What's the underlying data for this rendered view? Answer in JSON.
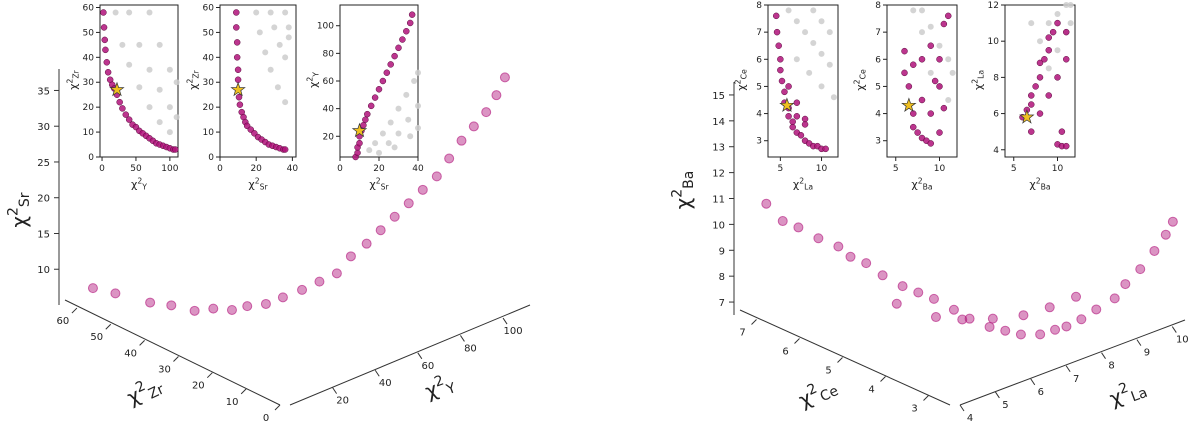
{
  "chart_data": [
    {
      "type": "scatter3d",
      "xlabel": {
        "symbol": "χ",
        "power": "2",
        "element": "Y"
      },
      "ylabel": {
        "symbol": "χ",
        "power": "2",
        "element": "Zr"
      },
      "zlabel": {
        "symbol": "χ",
        "power": "2",
        "element": "Sr"
      },
      "xlim": [
        0,
        115
      ],
      "ylim": [
        0,
        65
      ],
      "zlim": [
        5,
        38
      ],
      "xticks": [
        20,
        40,
        60,
        80,
        100
      ],
      "yticks": [
        0,
        10,
        20,
        30,
        40,
        50,
        60
      ],
      "zticks": [
        10,
        15,
        20,
        25,
        30,
        35
      ],
      "series": [
        {
          "color": "#b0127a",
          "x": [
            2,
            3,
            5,
            7,
            10,
            14,
            18,
            22,
            26,
            30,
            35,
            40,
            45,
            50,
            55,
            60,
            65,
            70,
            75,
            80,
            85,
            90,
            95,
            100,
            104,
            108
          ],
          "y": [
            58,
            52,
            43,
            38,
            33,
            30,
            27,
            25,
            22,
            19.5,
            17,
            15,
            13,
            12,
            10.5,
            9.5,
            8.5,
            7.5,
            6.5,
            5.5,
            5,
            4.5,
            4,
            3.5,
            3,
            3
          ],
          "z": [
            8,
            8.5,
            9,
            9.5,
            9.5,
            10,
            10,
            10.5,
            11,
            12,
            13,
            14,
            15,
            17,
            18.5,
            20,
            21.5,
            23,
            24.5,
            26,
            28,
            30,
            31.5,
            33,
            35,
            37
          ]
        }
      ]
    },
    {
      "type": "scatter3d",
      "xlabel": {
        "symbol": "χ",
        "power": "2",
        "element": "La"
      },
      "ylabel": {
        "symbol": "χ",
        "power": "2",
        "element": "Ce"
      },
      "zlabel": {
        "symbol": "χ",
        "power": "2",
        "element": "Ba"
      },
      "xlim": [
        4,
        10.5
      ],
      "ylim": [
        2.5,
        7.5
      ],
      "zlim": [
        6.5,
        15.5
      ],
      "xticks": [
        4,
        5,
        6,
        7,
        8,
        9,
        10
      ],
      "yticks": [
        3,
        4,
        5,
        6,
        7
      ],
      "zticks": [
        7,
        8,
        9,
        10,
        11,
        12,
        13,
        14,
        15
      ],
      "series": [
        {
          "color": "#b0127a",
          "x": [
            4.5,
            4.6,
            4.8,
            5,
            5.2,
            5.3,
            5.5,
            5.6,
            5.8,
            6,
            6.2,
            6.4,
            6.6,
            6.8,
            7,
            7.2,
            7.5,
            7.8,
            8,
            8.3,
            8.6,
            9,
            9.3,
            9.6,
            10,
            10.2,
            10.4,
            6,
            6.5,
            7,
            7.5,
            8,
            8.5,
            9
          ],
          "y": [
            7.3,
            7,
            6.8,
            6.5,
            6.2,
            6,
            5.8,
            5.5,
            5.2,
            5,
            4.8,
            4.5,
            4.3,
            4,
            3.8,
            3.6,
            3.4,
            3.3,
            3.2,
            3.1,
            3,
            2.9,
            2.9,
            2.8,
            2.8,
            2.7,
            2.7,
            5.5,
            5,
            4.8,
            4.5,
            4.2,
            4,
            3.8
          ],
          "z": [
            10.5,
            10,
            9.8,
            9.5,
            9.3,
            9,
            8.8,
            8.5,
            8.2,
            8,
            7.8,
            7.5,
            7.2,
            7,
            6.9,
            6.8,
            6.8,
            6.9,
            7,
            7.2,
            7.5,
            7.8,
            8.2,
            8.7,
            9.2,
            9.8,
            10.2,
            7.2,
            6.8,
            6.6,
            6.6,
            6.7,
            6.9,
            7.2
          ]
        }
      ]
    },
    {
      "type": "scatter",
      "xlabel": {
        "symbol": "χ",
        "power": "2",
        "element": "Y"
      },
      "ylabel": {
        "symbol": "χ",
        "power": "2",
        "element": "Zr"
      },
      "xlim": [
        -3,
        112
      ],
      "ylim": [
        0,
        61
      ],
      "xticks": [
        0,
        50,
        100
      ],
      "yticks": [
        0,
        10,
        20,
        30,
        40,
        50,
        60
      ],
      "series": [
        {
          "color": "#cccccc",
          "x": [
            20,
            30,
            40,
            55,
            70,
            85,
            100,
            40,
            55,
            70,
            85,
            100,
            110,
            70,
            85,
            100,
            110
          ],
          "values": [
            58,
            45,
            37,
            28,
            20,
            14,
            10,
            58,
            45,
            35,
            27,
            20,
            16,
            58,
            45,
            35,
            30
          ]
        },
        {
          "color": "#b0127a",
          "x": [
            2,
            3,
            4,
            5,
            7,
            9,
            12,
            15,
            18,
            22,
            26,
            30,
            35,
            40,
            45,
            50,
            55,
            60,
            65,
            70,
            75,
            80,
            85,
            90,
            95,
            100,
            105,
            108
          ],
          "values": [
            58,
            52,
            47,
            43,
            38,
            34,
            31,
            29,
            27.5,
            25,
            22,
            19.5,
            17,
            15,
            13,
            12,
            10.5,
            9.5,
            8.5,
            7.5,
            6.5,
            5.5,
            5,
            4.5,
            4,
            3.5,
            3,
            3
          ]
        }
      ],
      "highlight": {
        "color": "#f0c020",
        "x": 22,
        "y": 27
      }
    },
    {
      "type": "scatter",
      "xlabel": {
        "symbol": "χ",
        "power": "2",
        "element": "Sr"
      },
      "ylabel": {
        "symbol": "χ",
        "power": "2",
        "element": "Zr"
      },
      "xlim": [
        0,
        42
      ],
      "ylim": [
        0,
        61
      ],
      "xticks": [
        0,
        20,
        40
      ],
      "yticks": [
        0,
        10,
        20,
        30,
        40,
        50,
        60
      ],
      "series": [
        {
          "color": "#cccccc",
          "x": [
            20,
            22,
            25,
            28,
            32,
            36,
            28,
            30,
            33,
            36,
            36,
            38,
            38
          ],
          "values": [
            58,
            50,
            42,
            35,
            28,
            22,
            58,
            52,
            45,
            40,
            58,
            52,
            48
          ]
        },
        {
          "color": "#b0127a",
          "x": [
            9,
            9,
            9.5,
            9.5,
            10,
            10,
            10,
            10.5,
            11,
            12,
            13,
            14,
            15,
            17,
            19,
            21,
            23,
            25,
            27,
            29,
            31,
            33,
            35,
            36
          ],
          "values": [
            58,
            52,
            46,
            40,
            35,
            31,
            27,
            24,
            21,
            18,
            16,
            14,
            12.5,
            11,
            9.5,
            8,
            7,
            6,
            5,
            4.5,
            4,
            3.5,
            3,
            3
          ]
        }
      ],
      "highlight": {
        "color": "#f0c020",
        "x": 10,
        "y": 27
      }
    },
    {
      "type": "scatter",
      "xlabel": {
        "symbol": "χ",
        "power": "2",
        "element": "Sr"
      },
      "ylabel": {
        "symbol": "χ",
        "power": "2",
        "element": "Y"
      },
      "xlim": [
        0,
        40
      ],
      "ylim": [
        5,
        115
      ],
      "xticks": [
        0,
        20,
        40
      ],
      "yticks": [
        20,
        40,
        60,
        80,
        100
      ],
      "series": [
        {
          "color": "#cccccc",
          "x": [
            15,
            18,
            22,
            26,
            30,
            34,
            38,
            40,
            25,
            30,
            35,
            40,
            20,
            28,
            36,
            40
          ],
          "values": [
            10,
            15,
            22,
            30,
            40,
            50,
            60,
            66,
            15,
            22,
            32,
            42,
            8,
            12,
            20,
            26
          ]
        },
        {
          "color": "#b0127a",
          "x": [
            8,
            9,
            9,
            10,
            10,
            11,
            12,
            13,
            14,
            16,
            18,
            20,
            22,
            24,
            26,
            28,
            30,
            32,
            34,
            36,
            37
          ],
          "values": [
            5,
            8,
            12,
            15,
            20,
            24,
            28,
            32,
            36,
            42,
            48,
            54,
            60,
            66,
            72,
            78,
            84,
            90,
            96,
            102,
            108
          ]
        }
      ],
      "highlight": {
        "color": "#f0c020",
        "x": 10,
        "y": 24
      }
    },
    {
      "type": "scatter",
      "xlabel": {
        "symbol": "χ",
        "power": "2",
        "element": "La"
      },
      "ylabel": {
        "symbol": "χ",
        "power": "2",
        "element": "Ce"
      },
      "xlim": [
        3.5,
        12
      ],
      "ylim": [
        2.4,
        8
      ],
      "xticks": [
        5,
        10
      ],
      "yticks": [
        3,
        4,
        5,
        6,
        7,
        8
      ],
      "series": [
        {
          "color": "#cccccc",
          "x": [
            6,
            7,
            8,
            9,
            10,
            11,
            7,
            8.5,
            10,
            11.5,
            9,
            10,
            11
          ],
          "values": [
            7.8,
            7.4,
            7,
            6.6,
            6.2,
            5.8,
            6,
            5.5,
            5,
            4.6,
            7.8,
            7.4,
            7
          ]
        },
        {
          "color": "#b0127a",
          "x": [
            4.5,
            4.6,
            4.8,
            5,
            5,
            5.2,
            5.5,
            5.5,
            6,
            6,
            6.5,
            6.5,
            7,
            7,
            7.5,
            8,
            8,
            8.5,
            9,
            9.5,
            10,
            10.5,
            6,
            7,
            8
          ],
          "values": [
            7.6,
            7,
            6.5,
            6,
            5.6,
            5.2,
            4.8,
            4.4,
            4.2,
            3.9,
            3.7,
            3.5,
            3.3,
            3.9,
            3.2,
            3,
            3.6,
            2.9,
            2.8,
            2.8,
            2.7,
            2.7,
            5,
            4.4,
            3.8
          ]
        }
      ],
      "highlight": {
        "color": "#f0c020",
        "x": 5.8,
        "y": 4.3
      }
    },
    {
      "type": "scatter",
      "xlabel": {
        "symbol": "χ",
        "power": "2",
        "element": "Ba"
      },
      "ylabel": {
        "symbol": "χ",
        "power": "2",
        "element": "Ce"
      },
      "xlim": [
        4,
        12
      ],
      "ylim": [
        2.4,
        8
      ],
      "xticks": [
        5,
        10
      ],
      "yticks": [
        3,
        4,
        5,
        6,
        7,
        8
      ],
      "series": [
        {
          "color": "#cccccc",
          "x": [
            8,
            9,
            10,
            11,
            11.5,
            9,
            10,
            11,
            7,
            8
          ],
          "values": [
            7.8,
            7.2,
            6.5,
            6,
            5.5,
            5.5,
            5,
            4.5,
            7.8,
            7
          ]
        },
        {
          "color": "#b0127a",
          "x": [
            6,
            6,
            6.5,
            6.5,
            7,
            7,
            7.5,
            8,
            8,
            8.5,
            9,
            9,
            9.5,
            10,
            10,
            10.5,
            10.5,
            11,
            7,
            8,
            9,
            10
          ],
          "values": [
            6.3,
            5.5,
            5,
            4.3,
            4,
            3.5,
            3.3,
            3.1,
            4.5,
            3,
            2.9,
            4,
            5.2,
            3.3,
            6,
            4.2,
            7.3,
            7.6,
            5.8,
            6,
            6.5,
            5
          ]
        }
      ],
      "highlight": {
        "color": "#f0c020",
        "x": 6.5,
        "y": 4.3
      }
    },
    {
      "type": "scatter",
      "xlabel": {
        "symbol": "χ",
        "power": "2",
        "element": "Ba"
      },
      "ylabel": {
        "symbol": "χ",
        "power": "2",
        "element": "La"
      },
      "xlim": [
        4,
        12
      ],
      "ylim": [
        3.6,
        12
      ],
      "xticks": [
        5,
        10
      ],
      "yticks": [
        4,
        6,
        8,
        10,
        12
      ],
      "series": [
        {
          "color": "#cccccc",
          "x": [
            8,
            9,
            10,
            11,
            11.5,
            9,
            10,
            11,
            11.5,
            7
          ],
          "values": [
            10,
            11,
            11.5,
            12,
            12,
            8.5,
            9.5,
            10.5,
            11,
            11
          ]
        },
        {
          "color": "#b0127a",
          "x": [
            6,
            6.5,
            7,
            7,
            7.5,
            8,
            8,
            8.5,
            9,
            9,
            9.5,
            10,
            10,
            10.5,
            11,
            11,
            8,
            9,
            10,
            11,
            7,
            10.5
          ],
          "values": [
            5.8,
            6.2,
            6.5,
            7,
            7.5,
            8,
            8.8,
            9,
            9.5,
            10.2,
            10.5,
            11,
            4.3,
            4.2,
            4.2,
            9,
            6,
            7,
            8,
            10.5,
            5,
            5
          ]
        }
      ],
      "highlight": {
        "color": "#f0c020",
        "x": 6.5,
        "y": 5.8
      }
    }
  ]
}
